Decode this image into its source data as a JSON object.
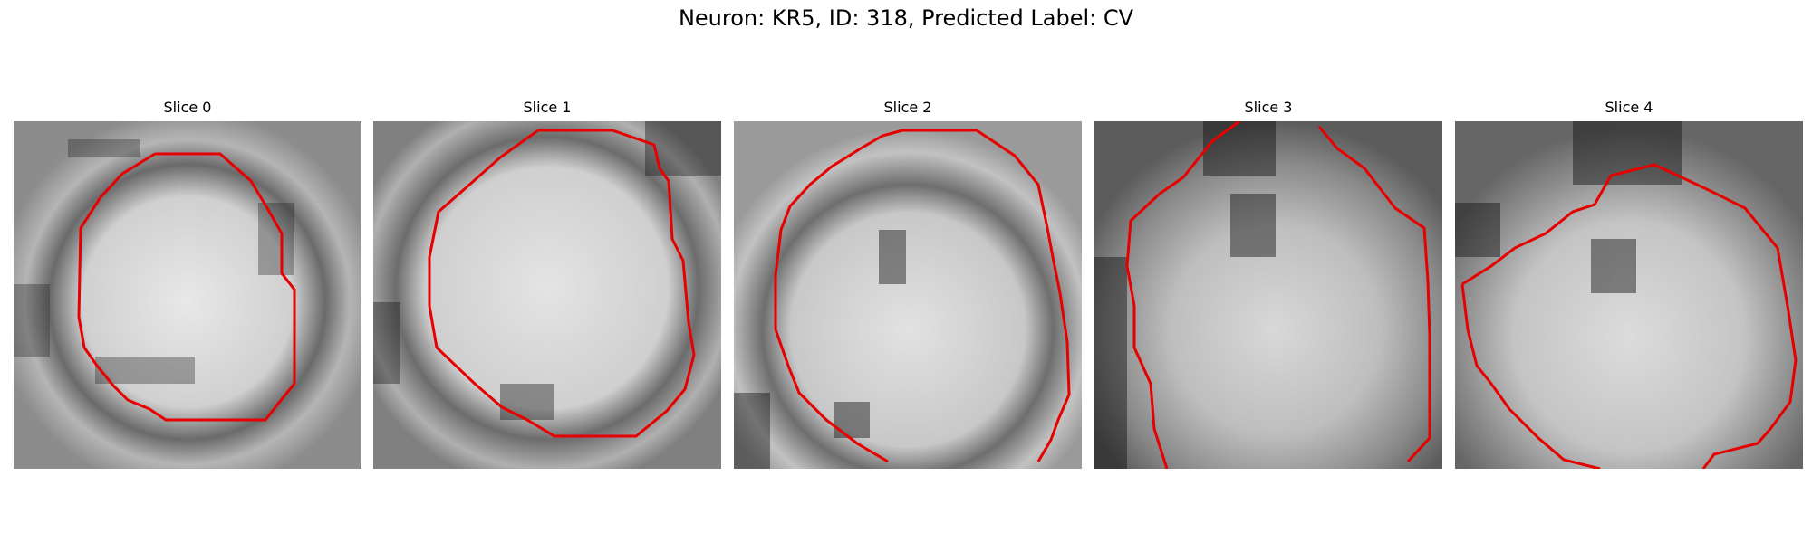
{
  "figure": {
    "title": "Neuron: KR5, ID: 318, Predicted Label: CV",
    "outline_color": "#e60000",
    "colormap": "grayscale"
  },
  "slices": [
    {
      "title": "Slice 0"
    },
    {
      "title": "Slice 1"
    },
    {
      "title": "Slice 2"
    },
    {
      "title": "Slice 3"
    },
    {
      "title": "Slice 4"
    }
  ]
}
